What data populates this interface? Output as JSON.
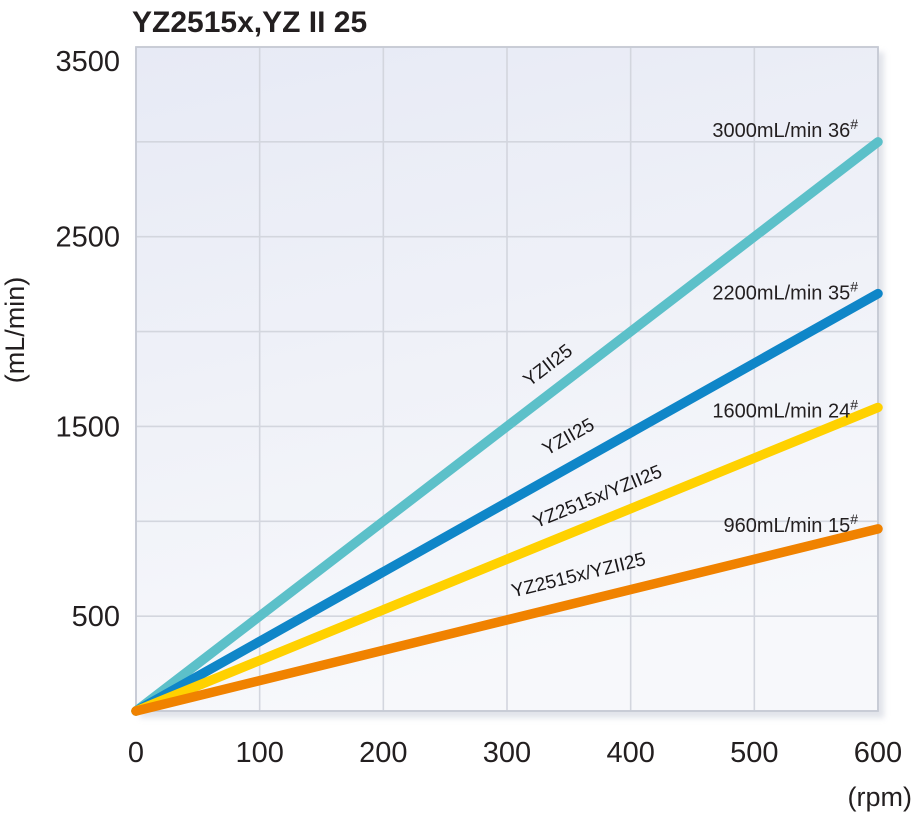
{
  "title": "YZ2515x,YZ II 25",
  "chart_data": {
    "type": "line",
    "title": "YZ2515x,YZ II 25",
    "xlabel": "(rpm)",
    "ylabel": "(mL/min)",
    "xlim": [
      0,
      600
    ],
    "ylim": [
      0,
      3500
    ],
    "x_ticks": [
      0,
      100,
      200,
      300,
      400,
      500,
      600
    ],
    "y_tick_labels": [
      500,
      1500,
      2500,
      3500
    ],
    "grid": true,
    "grid_x_step": 100,
    "grid_y_step": 500,
    "legend_position": "inline-labels",
    "series": [
      {
        "name": "YZII25",
        "color": "#5cc0c9",
        "x": [
          0,
          600
        ],
        "y": [
          0,
          3000
        ],
        "end_label": "3000mL/min 36",
        "end_label_sup": "#"
      },
      {
        "name": "YZII25",
        "color": "#0f86c8",
        "x": [
          0,
          600
        ],
        "y": [
          0,
          2200
        ],
        "end_label": "2200mL/min 35",
        "end_label_sup": "#"
      },
      {
        "name": "YZ2515x/YZII25",
        "color": "#ffd100",
        "x": [
          0,
          600
        ],
        "y": [
          0,
          1600
        ],
        "end_label": "1600mL/min 24",
        "end_label_sup": "#"
      },
      {
        "name": "YZ2515x/YZII25",
        "color": "#f08200",
        "x": [
          0,
          600
        ],
        "y": [
          0,
          960
        ],
        "end_label": "960mL/min 15",
        "end_label_sup": "#"
      }
    ]
  },
  "colors": {
    "text": "#231f20",
    "grid": "#d3d6de",
    "plot_border": "#c6cad4",
    "plot_shadow": "#c9cdd9",
    "plot_bg_top": "#e7eaf5",
    "plot_bg_bottom": "#f7f8fb"
  }
}
